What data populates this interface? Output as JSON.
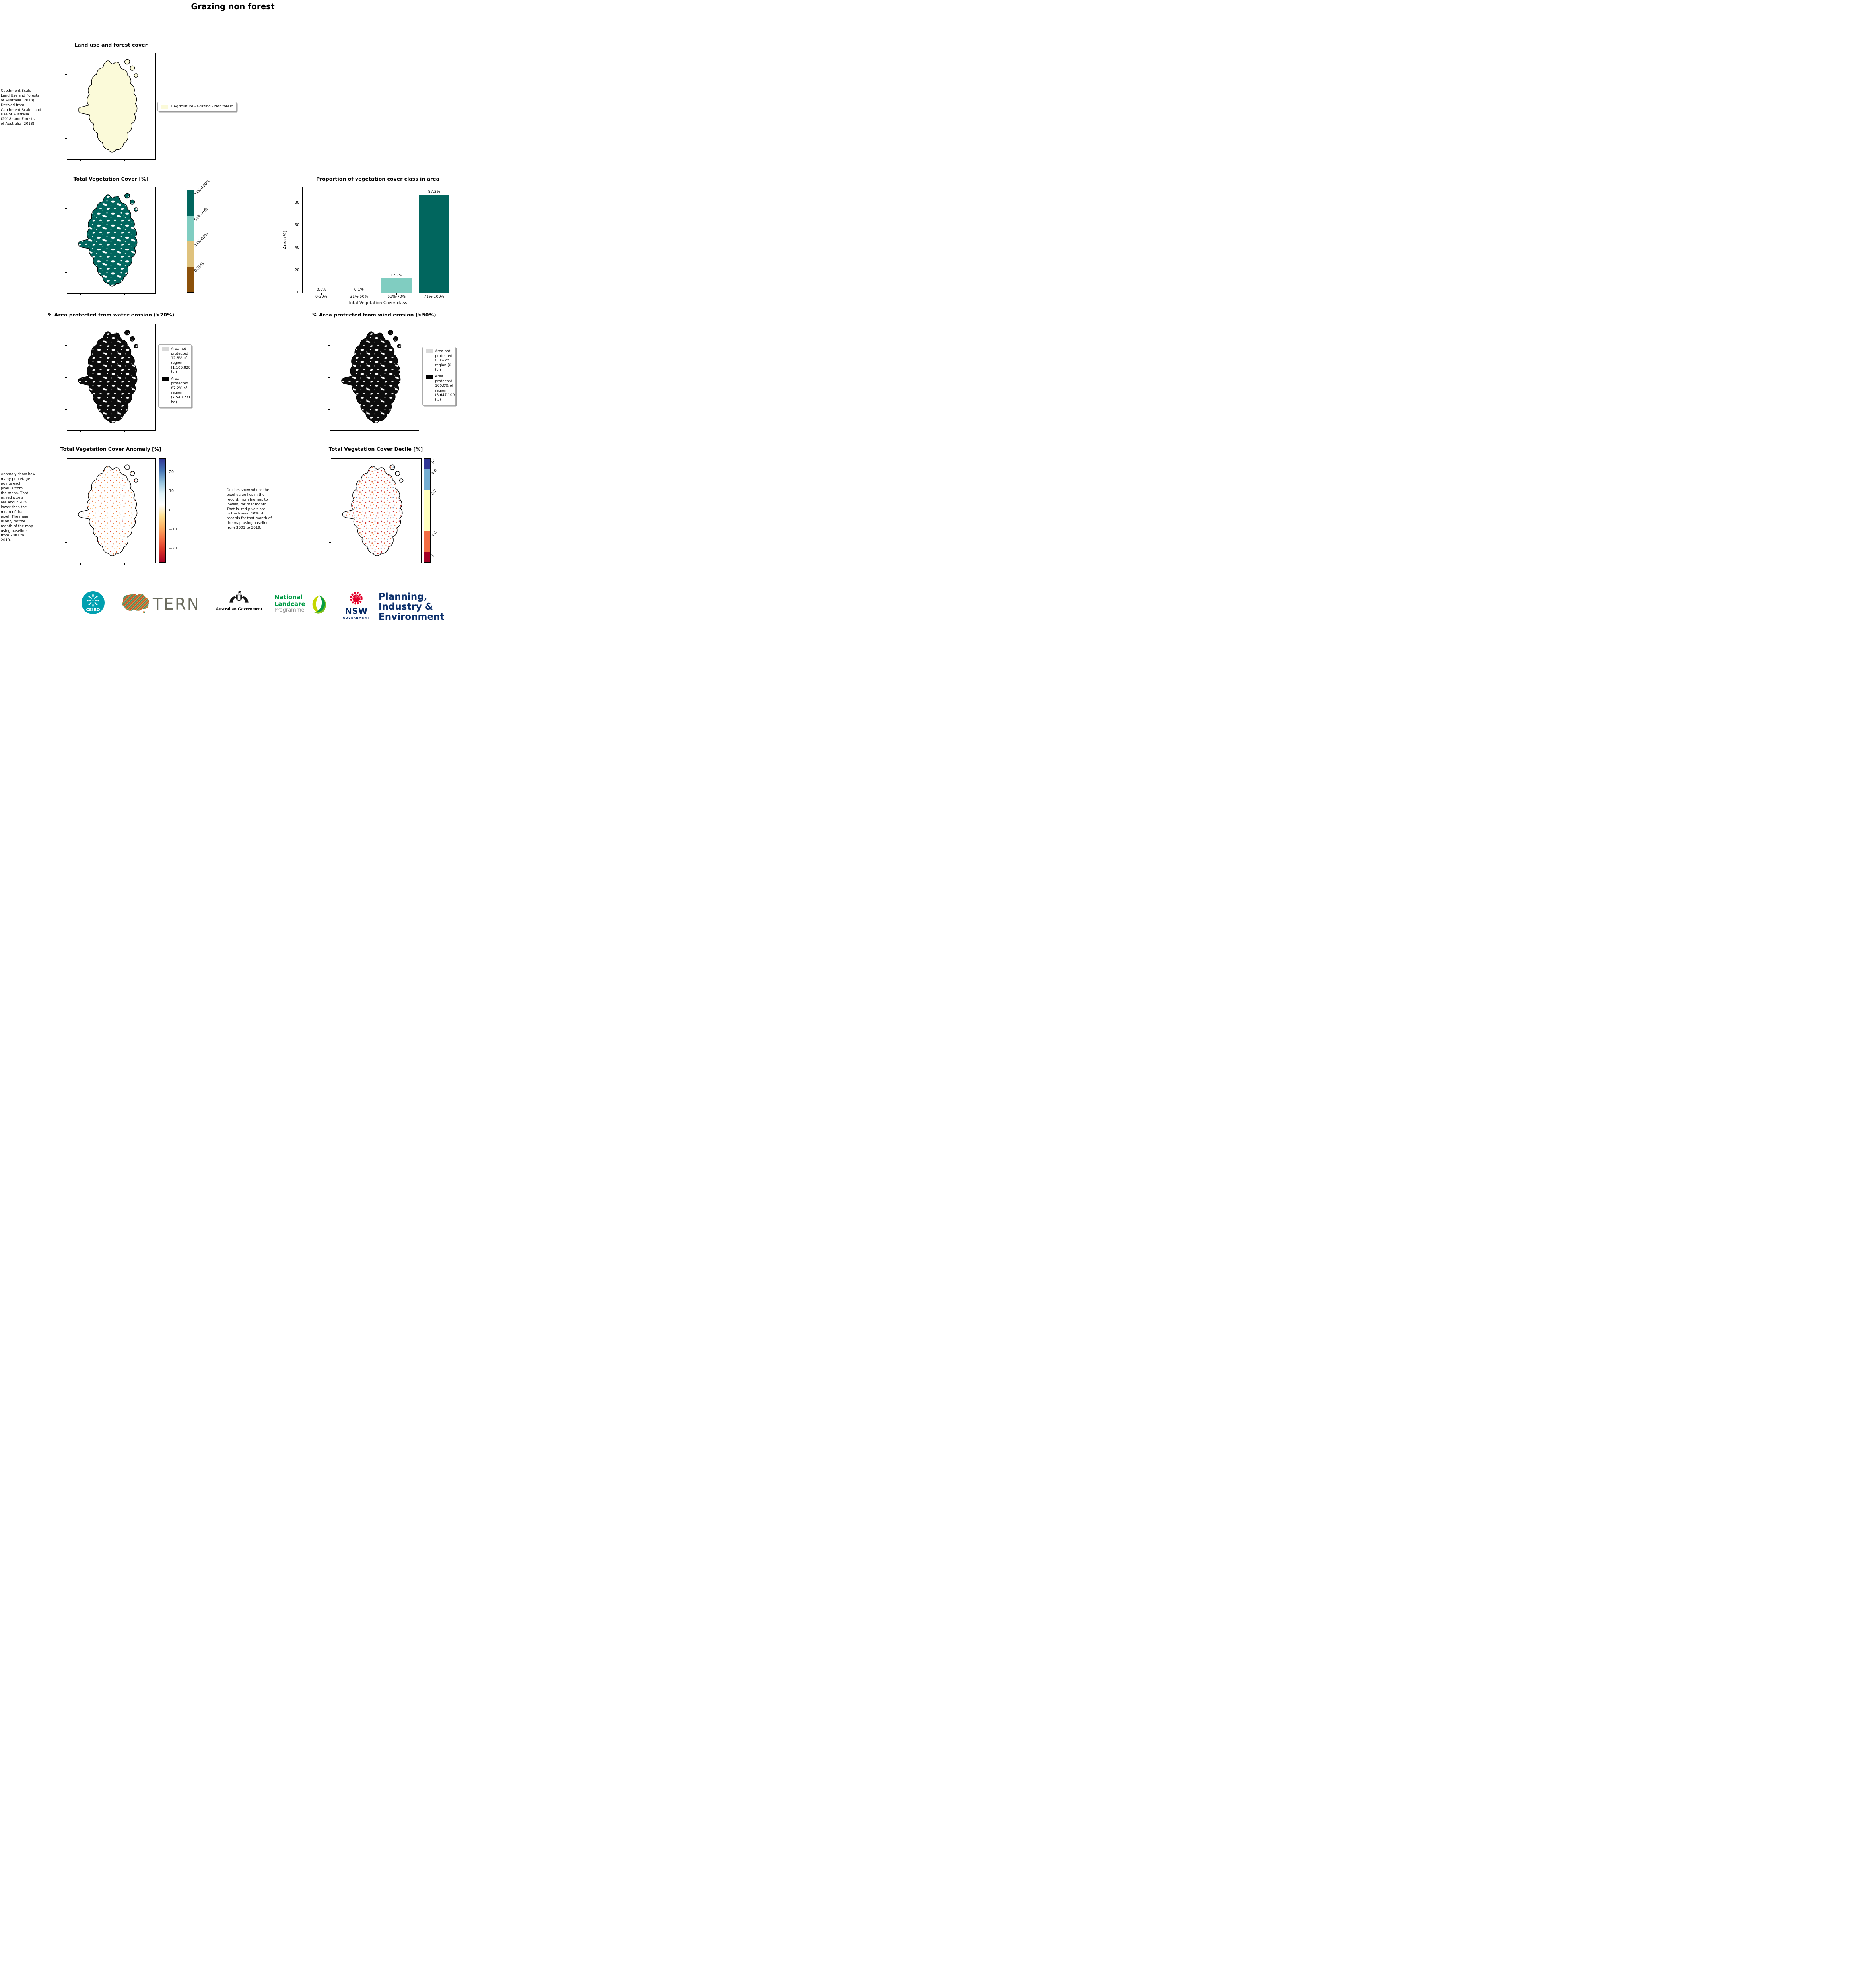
{
  "page": {
    "title": "Grazing non forest"
  },
  "panels": {
    "landuse": {
      "title": "Land use and forest cover",
      "caption": "Catchment Scale\nLand Use and Forests\nof Australia (2018)\nDerived from\nCatchment Scale Land\nUse of Australia\n(2018) and Forests\nof Australia (2018)",
      "legend_label": "1 Agriculture - Grazing - Non forest",
      "legend_swatch_color": "#fbfad9"
    },
    "tvc": {
      "title": "Total Vegetation Cover [%]",
      "colorbar": [
        {
          "label": "71%-100%",
          "color": "#01665e"
        },
        {
          "label": "51%-70%",
          "color": "#80cdc1"
        },
        {
          "label": "31%-50%",
          "color": "#dfc27d"
        },
        {
          "label": "0-30%",
          "color": "#8c510a"
        }
      ]
    },
    "water": {
      "title": "% Area protected from water erosion (>70%)",
      "legend": [
        {
          "label": "Area not\nprotected\n12.8% of\nregion\n(1,106,828\nha)",
          "color": "#d9d9d9"
        },
        {
          "label": "Area\nprotected\n87.2% of\nregion\n(7,540,271\nha)",
          "color": "#000000"
        }
      ]
    },
    "wind": {
      "title": "% Area protected from wind erosion (>50%)",
      "legend": [
        {
          "label": "Area not\nprotected\n0.0% of\nregion (0\nha)",
          "color": "#d9d9d9"
        },
        {
          "label": "Area\nprotected\n100.0% of\nregion\n(8,647,100\nha)",
          "color": "#000000"
        }
      ]
    },
    "anomaly": {
      "title": "Total Vegetation Cover Anomaly [%]",
      "caption": "Anomaly show how\nmany percetage\npoints each\npixel is from\nthe mean. That\nis, red pixels\nare about 20%\nlower than the\nmean of that\npixel. The mean\nis only for the\nmonth of the map\nusing baseline\nfrom 2001 to\n2019.",
      "colorbar_tick_labels": [
        "20",
        "10",
        "0",
        "−10",
        "−20"
      ],
      "colorbar_tick_values": [
        20,
        10,
        0,
        -10,
        -20
      ],
      "gradient": [
        "#313695",
        "#4575b4",
        "#91bfdb",
        "#e0f3f8",
        "#ffffff",
        "#fee090",
        "#fdae61",
        "#f46d43",
        "#d73027",
        "#a50026"
      ]
    },
    "decile": {
      "title": "Total Vegetation Cover Decile [%]",
      "caption": "Deciles show where the\npixel value lies in the\nrecord, from highest to\nlowest, for that month.\nThat is, red pixels are\nin the lowest 10% of\nrecords for that month of\nthe map using baseline\nfrom 2001 to 2019.",
      "classes": [
        {
          "label": "10",
          "color": "#313695",
          "span": 1
        },
        {
          "label": "8-9",
          "color": "#74add1",
          "span": 2
        },
        {
          "label": "4-7",
          "color": "#ffffbf",
          "span": 4
        },
        {
          "label": "2-3",
          "color": "#f46d43",
          "span": 2
        },
        {
          "label": "1",
          "color": "#a50026",
          "span": 1
        }
      ]
    }
  },
  "chart_data": {
    "type": "bar",
    "title": "Proportion of vegetation cover class in area",
    "categories": [
      "0-30%",
      "31%-50%",
      "51%-70%",
      "71%-100%"
    ],
    "values": [
      0.0,
      0.1,
      12.7,
      87.2
    ],
    "value_labels": [
      "0.0%",
      "0.1%",
      "12.7%",
      "87.2%"
    ],
    "bar_colors": [
      "#8c510a",
      "#dfc27d",
      "#80cdc1",
      "#01665e"
    ],
    "xlabel": "Total Vegetation Cover class",
    "ylabel": "Area (%)",
    "ylim": [
      0,
      94
    ],
    "yticks": [
      0,
      20,
      40,
      60,
      80
    ],
    "grid": false,
    "legend_position": "none"
  },
  "footer": {
    "csiro": "CSIRO",
    "tern": "TERN",
    "ausgov": "Australian Government",
    "landcare_line1": "National",
    "landcare_line2": "Landcare",
    "landcare_line3": "Programme",
    "nsw": "NSW",
    "nsw_sub": "GOVERNMENT",
    "dpie_line1": "Planning,",
    "dpie_line2": "Industry &",
    "dpie_line3": "Environment"
  }
}
